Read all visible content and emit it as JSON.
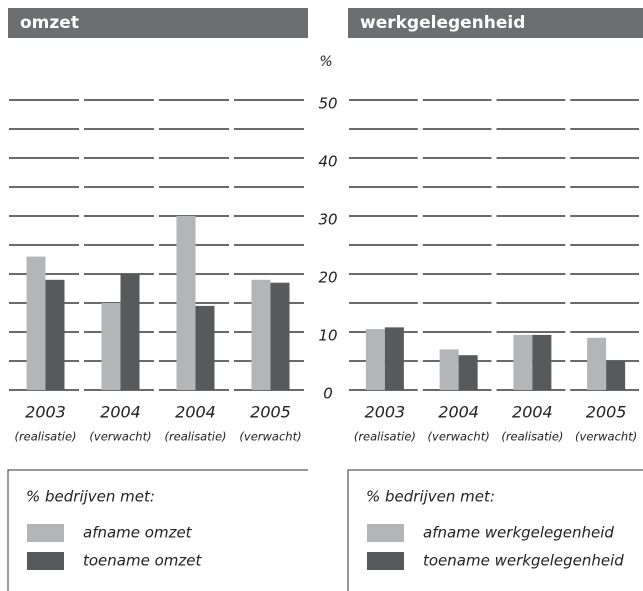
{
  "chart_data": [
    {
      "type": "bar",
      "title": "omzet",
      "y_label": "%",
      "categories": [
        "2003",
        "2004",
        "2004",
        "2005"
      ],
      "category_notes": [
        "(realisatie)",
        "(verwacht)",
        "(realisatie)",
        "(verwacht)"
      ],
      "series": [
        {
          "name": "afname omzet",
          "color": "#b4b5b7",
          "values": [
            23,
            15,
            30,
            19
          ]
        },
        {
          "name": "toename omzet",
          "color": "#58595b",
          "values": [
            19,
            20,
            14.5,
            18.5
          ]
        }
      ],
      "legend_title": "% bedrijven met:",
      "ylim": [
        0,
        50
      ],
      "yticks": [
        0,
        10,
        20,
        30,
        40,
        50
      ],
      "minor_yticks": [
        5,
        15,
        25,
        35,
        45
      ],
      "grid": true
    },
    {
      "type": "bar",
      "title": "werkgelegenheid",
      "categories": [
        "2003",
        "2004",
        "2004",
        "2005"
      ],
      "category_notes": [
        "(realisatie)",
        "(verwacht)",
        "(realisatie)",
        "(verwacht)"
      ],
      "series": [
        {
          "name": "afname werkgelegenheid",
          "color": "#b4b5b7",
          "values": [
            10.5,
            7,
            9.5,
            9
          ]
        },
        {
          "name": "toename werkgelegenheid",
          "color": "#58595b",
          "values": [
            10.8,
            6,
            9.5,
            5
          ]
        }
      ],
      "legend_title": "% bedrijven met:",
      "ylim": [
        0,
        50
      ],
      "yticks": [
        0,
        10,
        20,
        30,
        40,
        50
      ],
      "minor_yticks": [
        5,
        15,
        25,
        35,
        45
      ],
      "grid": true
    }
  ]
}
